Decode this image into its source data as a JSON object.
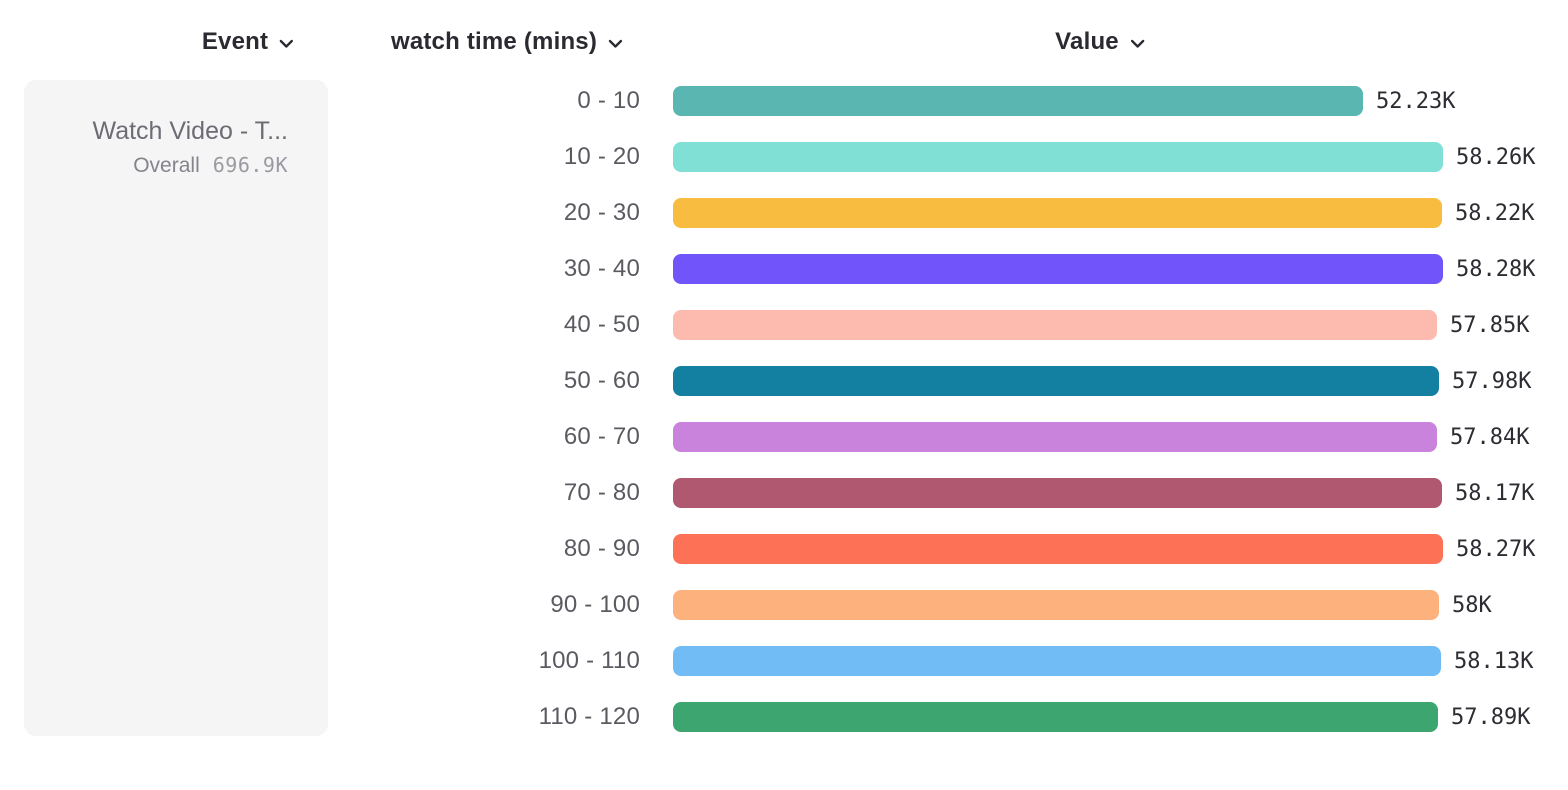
{
  "header": {
    "event_column": {
      "label": "Event"
    },
    "breakdown_column": {
      "label": "watch time (mins)"
    },
    "value_column": {
      "label": "Value"
    }
  },
  "event_card": {
    "title": "Watch Video - T...",
    "overall_label": "Overall",
    "overall_value": "696.9K"
  },
  "icons": {
    "column_dropdown": "chevron-down"
  },
  "colors": {
    "header_text": "#2A2A31",
    "category_label": "#5A5A61",
    "value_label": "#2C2C32",
    "card_background": "#F5F5F6",
    "card_title": "#6C6C74",
    "overall_label": "#84848C",
    "overall_value": "#9A9AA1"
  },
  "chart_data": {
    "type": "bar",
    "orientation": "horizontal",
    "title": "",
    "xlabel": "Value",
    "ylabel": "watch time (mins)",
    "series_name": "Watch Video - T...",
    "categories": [
      "0 - 10",
      "10 - 20",
      "20 - 30",
      "30 - 40",
      "40 - 50",
      "50 - 60",
      "60 - 70",
      "70 - 80",
      "80 - 90",
      "90 - 100",
      "100 - 110",
      "110 - 120"
    ],
    "values": [
      52230,
      58260,
      58220,
      58280,
      57850,
      57980,
      57840,
      58170,
      58270,
      58000,
      58130,
      57890
    ],
    "value_labels": [
      "52.23K",
      "58.26K",
      "58.22K",
      "58.28K",
      "57.85K",
      "57.98K",
      "57.84K",
      "58.17K",
      "58.27K",
      "58K",
      "58.13K",
      "57.89K"
    ],
    "bar_colors": [
      "#59B6B0",
      "#80E0D5",
      "#F7BC40",
      "#7255FA",
      "#FDBAAF",
      "#1480A1",
      "#CA83DC",
      "#B05870",
      "#FD7257",
      "#FDB17D",
      "#72BCF6",
      "#3DA570"
    ],
    "overall_total": "696.9K",
    "xlim": [
      0,
      58280
    ],
    "grid": false,
    "legend_position": "left-card",
    "value_label_position": "right-of-bar"
  }
}
